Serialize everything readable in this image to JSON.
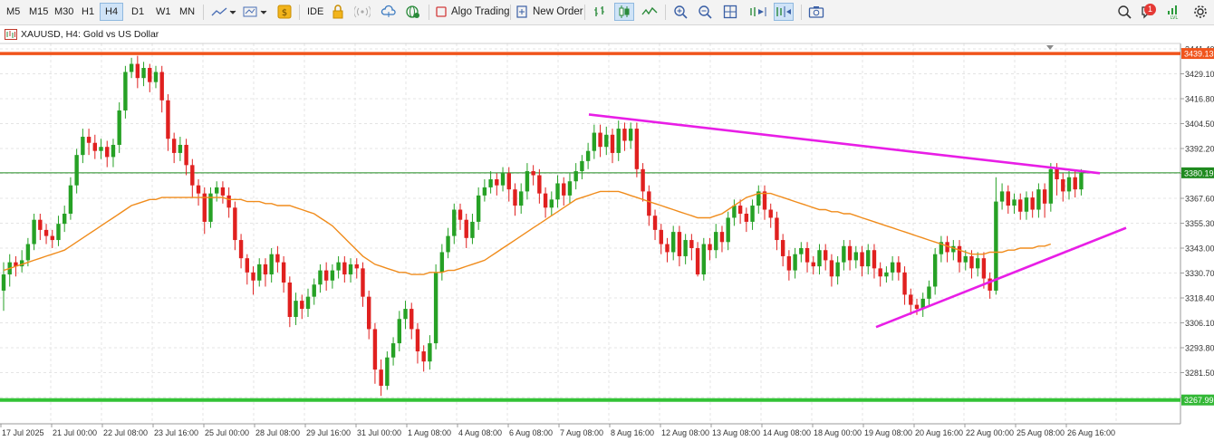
{
  "toolbar": {
    "timeframes": [
      "M5",
      "M15",
      "M30",
      "H1",
      "H4",
      "D1",
      "W1",
      "MN"
    ],
    "active_timeframe": "H4",
    "ide_label": "IDE",
    "algo_trading_label": "Algo Trading",
    "new_order_label": "New Order",
    "notification_count": "1"
  },
  "chart_title": "XAUUSD, H4:  Gold vs US Dollar",
  "colors": {
    "bull": "#26a125",
    "bear": "#e0201f",
    "ma": "#f08c1c",
    "trendline": "#e81ee6",
    "resistance": "#f0541c",
    "support": "#33c336",
    "price_line": "#1f8a1f"
  },
  "chart_data": {
    "type": "candlestick",
    "symbol": "XAUUSD",
    "timeframe": "H4",
    "description": "Gold vs US Dollar",
    "y_ticks": [
      "3441.40",
      "3429.10",
      "3416.80",
      "3404.50",
      "3392.20",
      "3379.90",
      "3367.60",
      "3355.30",
      "3343.00",
      "3330.70",
      "3318.40",
      "3306.10",
      "3293.80",
      "3281.50",
      "3269.20"
    ],
    "x_ticks": [
      "17 Jul 2025",
      "21 Jul 00:00",
      "22 Jul 08:00",
      "23 Jul 16:00",
      "25 Jul 00:00",
      "28 Jul 08:00",
      "29 Jul 16:00",
      "31 Jul 00:00",
      "1 Aug 08:00",
      "4 Aug 08:00",
      "6 Aug 08:00",
      "7 Aug 08:00",
      "8 Aug 16:00",
      "12 Aug 08:00",
      "13 Aug 08:00",
      "14 Aug 08:00",
      "18 Aug 00:00",
      "19 Aug 08:00",
      "20 Aug 16:00",
      "22 Aug 00:00",
      "25 Aug 08:00",
      "26 Aug 16:00"
    ],
    "levels": [
      {
        "price": 3439.13,
        "label": "3439.13",
        "kind": "resistance"
      },
      {
        "price": 3380.19,
        "label": "3380.19",
        "kind": "current"
      },
      {
        "price": 3267.99,
        "label": "3267.99",
        "kind": "support"
      }
    ],
    "trendlines": [
      {
        "from": [
          "7 Aug 08:00",
          3409
        ],
        "to": [
          "26 Aug 20:00",
          3380
        ],
        "color": "trendline"
      },
      {
        "from": [
          "19 Aug 08:00",
          3304
        ],
        "to": [
          "27 Aug 04:00",
          3353
        ],
        "color": "trendline"
      }
    ],
    "candles": [
      [
        3322,
        3330,
        3312,
        3336
      ],
      [
        3330,
        3336,
        3324,
        3340
      ],
      [
        3336,
        3334,
        3329,
        3339
      ],
      [
        3334,
        3337,
        3331,
        3342
      ],
      [
        3337,
        3345,
        3334,
        3348
      ],
      [
        3345,
        3357,
        3342,
        3360
      ],
      [
        3357,
        3352,
        3347,
        3360
      ],
      [
        3352,
        3349,
        3345,
        3355
      ],
      [
        3349,
        3347,
        3343,
        3352
      ],
      [
        3347,
        3355,
        3344,
        3359
      ],
      [
        3355,
        3360,
        3351,
        3364
      ],
      [
        3360,
        3374,
        3357,
        3378
      ],
      [
        3374,
        3389,
        3370,
        3392
      ],
      [
        3389,
        3398,
        3385,
        3402
      ],
      [
        3398,
        3395,
        3389,
        3402
      ],
      [
        3395,
        3391,
        3387,
        3399
      ],
      [
        3391,
        3393,
        3387,
        3397
      ],
      [
        3393,
        3388,
        3383,
        3396
      ],
      [
        3388,
        3394,
        3383,
        3397
      ],
      [
        3394,
        3411,
        3390,
        3415
      ],
      [
        3411,
        3430,
        3407,
        3433
      ],
      [
        3430,
        3434,
        3427,
        3437
      ],
      [
        3434,
        3427,
        3422,
        3438
      ],
      [
        3427,
        3432,
        3423,
        3435
      ],
      [
        3432,
        3425,
        3420,
        3434
      ],
      [
        3425,
        3430,
        3422,
        3433
      ],
      [
        3430,
        3416,
        3410,
        3433
      ],
      [
        3416,
        3397,
        3391,
        3419
      ],
      [
        3397,
        3390,
        3385,
        3400
      ],
      [
        3390,
        3394,
        3386,
        3398
      ],
      [
        3394,
        3384,
        3379,
        3397
      ],
      [
        3384,
        3374,
        3368,
        3387
      ],
      [
        3374,
        3370,
        3364,
        3377
      ],
      [
        3370,
        3356,
        3350,
        3373
      ],
      [
        3356,
        3370,
        3353,
        3373
      ],
      [
        3370,
        3373,
        3366,
        3376
      ],
      [
        3373,
        3369,
        3365,
        3376
      ],
      [
        3369,
        3363,
        3358,
        3373
      ],
      [
        3363,
        3347,
        3342,
        3366
      ],
      [
        3347,
        3338,
        3333,
        3350
      ],
      [
        3338,
        3331,
        3325,
        3340
      ],
      [
        3331,
        3327,
        3320,
        3334
      ],
      [
        3327,
        3335,
        3324,
        3338
      ],
      [
        3335,
        3330,
        3324,
        3338
      ],
      [
        3330,
        3340,
        3326,
        3343
      ],
      [
        3340,
        3336,
        3331,
        3344
      ],
      [
        3336,
        3326,
        3321,
        3339
      ],
      [
        3326,
        3309,
        3304,
        3329
      ],
      [
        3309,
        3317,
        3305,
        3321
      ],
      [
        3317,
        3313,
        3308,
        3320
      ],
      [
        3313,
        3319,
        3309,
        3323
      ],
      [
        3319,
        3325,
        3315,
        3328
      ],
      [
        3325,
        3332,
        3321,
        3335
      ],
      [
        3332,
        3327,
        3322,
        3336
      ],
      [
        3327,
        3332,
        3323,
        3335
      ],
      [
        3332,
        3336,
        3328,
        3339
      ],
      [
        3336,
        3330,
        3326,
        3339
      ],
      [
        3330,
        3335,
        3326,
        3338
      ],
      [
        3335,
        3333,
        3328,
        3338
      ],
      [
        3333,
        3319,
        3314,
        3336
      ],
      [
        3319,
        3303,
        3298,
        3322
      ],
      [
        3303,
        3283,
        3276,
        3306
      ],
      [
        3283,
        3275,
        3270,
        3288
      ],
      [
        3275,
        3289,
        3273,
        3292
      ],
      [
        3289,
        3296,
        3285,
        3299
      ],
      [
        3296,
        3308,
        3292,
        3312
      ],
      [
        3308,
        3313,
        3303,
        3317
      ],
      [
        3313,
        3303,
        3298,
        3316
      ],
      [
        3303,
        3292,
        3286,
        3306
      ],
      [
        3292,
        3287,
        3282,
        3295
      ],
      [
        3287,
        3296,
        3283,
        3300
      ],
      [
        3296,
        3331,
        3293,
        3335
      ],
      [
        3331,
        3341,
        3327,
        3345
      ],
      [
        3341,
        3349,
        3338,
        3353
      ],
      [
        3349,
        3362,
        3345,
        3365
      ],
      [
        3362,
        3357,
        3352,
        3365
      ],
      [
        3357,
        3348,
        3343,
        3360
      ],
      [
        3348,
        3356,
        3345,
        3360
      ],
      [
        3356,
        3369,
        3352,
        3373
      ],
      [
        3369,
        3373,
        3366,
        3377
      ],
      [
        3373,
        3377,
        3370,
        3381
      ],
      [
        3377,
        3374,
        3369,
        3380
      ],
      [
        3374,
        3380,
        3371,
        3383
      ],
      [
        3380,
        3372,
        3366,
        3383
      ],
      [
        3372,
        3364,
        3359,
        3375
      ],
      [
        3364,
        3371,
        3360,
        3375
      ],
      [
        3371,
        3381,
        3367,
        3385
      ],
      [
        3381,
        3379,
        3374,
        3384
      ],
      [
        3379,
        3370,
        3365,
        3382
      ],
      [
        3370,
        3363,
        3358,
        3373
      ],
      [
        3363,
        3367,
        3359,
        3371
      ],
      [
        3367,
        3375,
        3363,
        3379
      ],
      [
        3375,
        3369,
        3364,
        3378
      ],
      [
        3369,
        3376,
        3365,
        3380
      ],
      [
        3376,
        3381,
        3372,
        3385
      ],
      [
        3381,
        3386,
        3377,
        3389
      ],
      [
        3386,
        3391,
        3382,
        3395
      ],
      [
        3391,
        3400,
        3387,
        3404
      ],
      [
        3400,
        3393,
        3388,
        3404
      ],
      [
        3393,
        3399,
        3389,
        3403
      ],
      [
        3399,
        3390,
        3385,
        3402
      ],
      [
        3390,
        3402,
        3386,
        3406
      ],
      [
        3402,
        3396,
        3391,
        3405
      ],
      [
        3396,
        3402,
        3392,
        3405
      ],
      [
        3402,
        3382,
        3378,
        3405
      ],
      [
        3382,
        3371,
        3366,
        3385
      ],
      [
        3371,
        3359,
        3354,
        3374
      ],
      [
        3359,
        3352,
        3347,
        3362
      ],
      [
        3352,
        3345,
        3340,
        3355
      ],
      [
        3345,
        3341,
        3336,
        3348
      ],
      [
        3341,
        3351,
        3337,
        3354
      ],
      [
        3351,
        3339,
        3334,
        3354
      ],
      [
        3339,
        3347,
        3335,
        3350
      ],
      [
        3347,
        3343,
        3337,
        3350
      ],
      [
        3343,
        3330,
        3329,
        3346
      ],
      [
        3330,
        3345,
        3327,
        3348
      ],
      [
        3345,
        3342,
        3337,
        3348
      ],
      [
        3342,
        3351,
        3338,
        3355
      ],
      [
        3351,
        3346,
        3341,
        3354
      ],
      [
        3346,
        3358,
        3342,
        3361
      ],
      [
        3358,
        3364,
        3354,
        3367
      ],
      [
        3364,
        3360,
        3355,
        3367
      ],
      [
        3360,
        3356,
        3351,
        3363
      ],
      [
        3356,
        3364,
        3352,
        3367
      ],
      [
        3364,
        3371,
        3360,
        3374
      ],
      [
        3371,
        3362,
        3357,
        3374
      ],
      [
        3362,
        3358,
        3353,
        3365
      ],
      [
        3358,
        3347,
        3342,
        3361
      ],
      [
        3347,
        3339,
        3334,
        3350
      ],
      [
        3339,
        3332,
        3327,
        3342
      ],
      [
        3332,
        3340,
        3328,
        3343
      ],
      [
        3340,
        3343,
        3336,
        3346
      ],
      [
        3343,
        3336,
        3331,
        3346
      ],
      [
        3336,
        3334,
        3330,
        3339
      ],
      [
        3334,
        3342,
        3330,
        3345
      ],
      [
        3342,
        3337,
        3332,
        3345
      ],
      [
        3337,
        3329,
        3324,
        3340
      ],
      [
        3329,
        3336,
        3325,
        3339
      ],
      [
        3336,
        3344,
        3332,
        3347
      ],
      [
        3344,
        3337,
        3332,
        3347
      ],
      [
        3337,
        3341,
        3333,
        3344
      ],
      [
        3341,
        3334,
        3329,
        3344
      ],
      [
        3334,
        3342,
        3330,
        3345
      ],
      [
        3342,
        3333,
        3328,
        3345
      ],
      [
        3333,
        3329,
        3324,
        3336
      ],
      [
        3329,
        3331,
        3326,
        3334
      ],
      [
        3331,
        3336,
        3327,
        3339
      ],
      [
        3336,
        3331,
        3327,
        3339
      ],
      [
        3331,
        3320,
        3315,
        3334
      ],
      [
        3320,
        3315,
        3310,
        3323
      ],
      [
        3315,
        3313,
        3310,
        3318
      ],
      [
        3313,
        3318,
        3309,
        3321
      ],
      [
        3318,
        3324,
        3314,
        3327
      ],
      [
        3324,
        3340,
        3320,
        3343
      ],
      [
        3340,
        3346,
        3336,
        3349
      ],
      [
        3346,
        3341,
        3336,
        3349
      ],
      [
        3341,
        3344,
        3337,
        3347
      ],
      [
        3344,
        3336,
        3331,
        3347
      ],
      [
        3336,
        3339,
        3332,
        3342
      ],
      [
        3339,
        3333,
        3328,
        3342
      ],
      [
        3333,
        3338,
        3329,
        3341
      ],
      [
        3338,
        3328,
        3323,
        3341
      ],
      [
        3328,
        3322,
        3318,
        3331
      ],
      [
        3322,
        3366,
        3320,
        3378
      ],
      [
        3366,
        3371,
        3362,
        3375
      ],
      [
        3371,
        3364,
        3360,
        3374
      ],
      [
        3364,
        3367,
        3360,
        3370
      ],
      [
        3367,
        3361,
        3357,
        3370
      ],
      [
        3361,
        3368,
        3357,
        3371
      ],
      [
        3368,
        3362,
        3358,
        3371
      ],
      [
        3362,
        3372,
        3358,
        3375
      ],
      [
        3372,
        3365,
        3358,
        3375
      ],
      [
        3365,
        3382,
        3361,
        3385
      ],
      [
        3382,
        3377,
        3369,
        3385
      ],
      [
        3377,
        3371,
        3366,
        3380
      ],
      [
        3371,
        3378,
        3367,
        3381
      ],
      [
        3378,
        3372,
        3368,
        3381
      ],
      [
        3372,
        3380,
        3369,
        3382
      ]
    ],
    "ma": [
      3332,
      3333,
      3334,
      3335,
      3336,
      3337,
      3338,
      3339,
      3340,
      3341,
      3342,
      3344,
      3346,
      3348,
      3350,
      3352,
      3354,
      3356,
      3358,
      3360,
      3362,
      3364,
      3365,
      3366,
      3367,
      3367,
      3368,
      3368,
      3368,
      3368,
      3368,
      3368,
      3368,
      3368,
      3368,
      3368,
      3368,
      3367,
      3367,
      3367,
      3366,
      3366,
      3366,
      3365,
      3365,
      3364,
      3364,
      3364,
      3363,
      3362,
      3361,
      3360,
      3358,
      3356,
      3354,
      3351,
      3348,
      3345,
      3342,
      3339,
      3337,
      3335,
      3334,
      3333,
      3332,
      3331,
      3331,
      3330,
      3330,
      3330,
      3331,
      3331,
      3331,
      3332,
      3332,
      3333,
      3334,
      3335,
      3336,
      3337,
      3339,
      3341,
      3343,
      3345,
      3347,
      3349,
      3351,
      3353,
      3355,
      3357,
      3359,
      3361,
      3363,
      3365,
      3367,
      3368,
      3369,
      3370,
      3371,
      3371,
      3371,
      3371,
      3370,
      3369,
      3368,
      3367,
      3366,
      3365,
      3364,
      3363,
      3362,
      3361,
      3360,
      3359,
      3358,
      3358,
      3358,
      3359,
      3360,
      3362,
      3364,
      3366,
      3368,
      3369,
      3370,
      3370,
      3370,
      3369,
      3368,
      3367,
      3366,
      3365,
      3364,
      3363,
      3362,
      3362,
      3361,
      3361,
      3360,
      3360,
      3359,
      3358,
      3357,
      3356,
      3355,
      3354,
      3353,
      3352,
      3351,
      3350,
      3349,
      3348,
      3347,
      3346,
      3345,
      3344,
      3343,
      3342,
      3341,
      3340,
      3340,
      3340,
      3341,
      3341,
      3341,
      3342,
      3342,
      3343,
      3343,
      3343,
      3344,
      3344,
      3345
    ]
  }
}
